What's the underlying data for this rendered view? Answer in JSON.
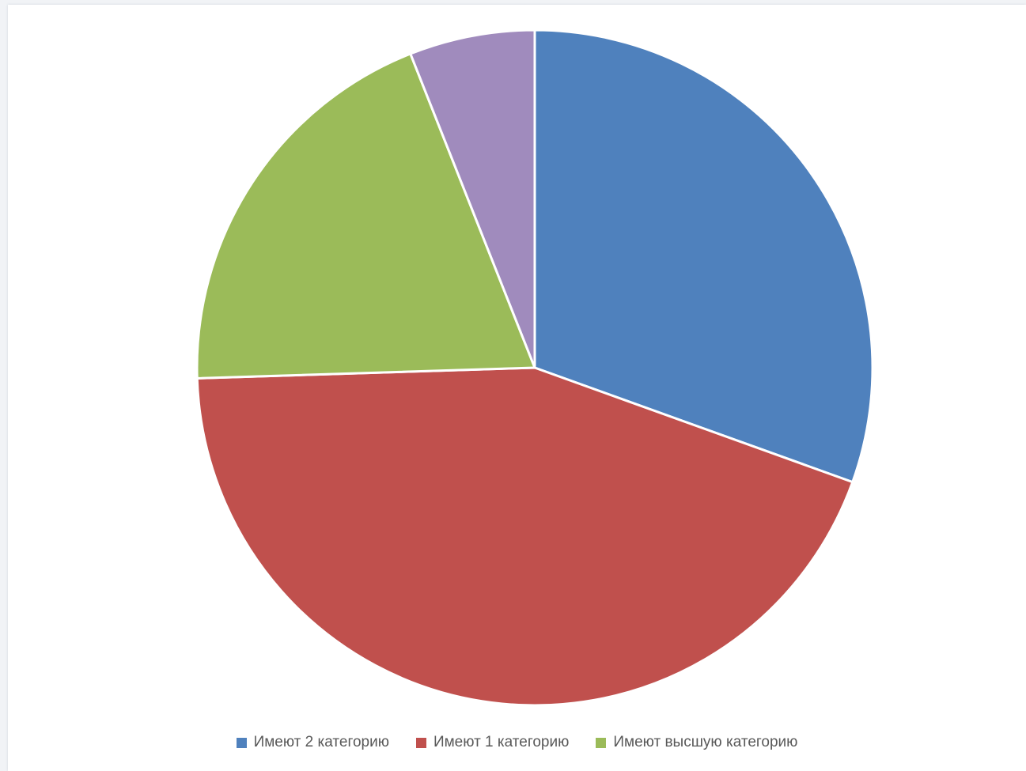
{
  "chart_data": {
    "type": "pie",
    "title": "",
    "slices": [
      {
        "name": "Имеют 2 категорию",
        "value": 30.5,
        "color": "#4f81bd"
      },
      {
        "name": "Имеют 1 категорию",
        "value": 44.0,
        "color": "#c0504d"
      },
      {
        "name": "Имеют высшую категорию",
        "value": 19.5,
        "color": "#9bbb59"
      },
      {
        "name": "",
        "value": 6.0,
        "color": "#a08bbd"
      }
    ],
    "legend_position": "bottom",
    "start_angle": "top-center, clockwise"
  }
}
